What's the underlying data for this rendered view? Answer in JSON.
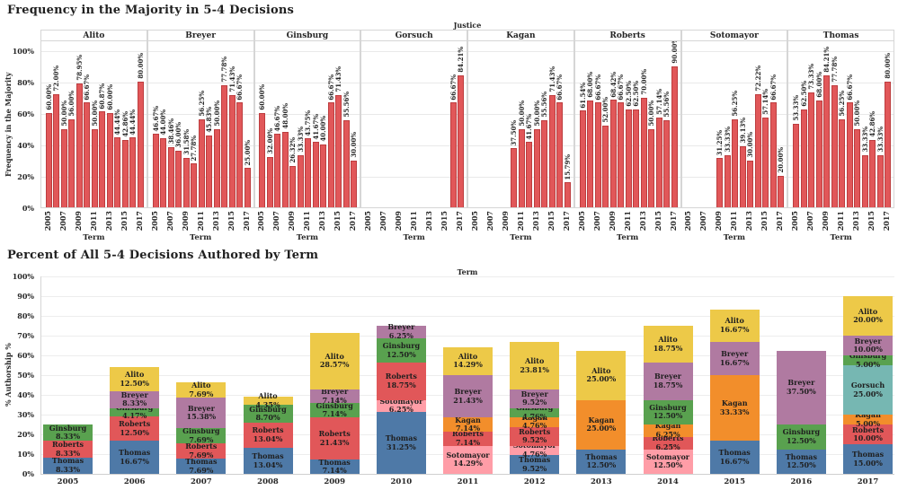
{
  "chart_data": [
    {
      "type": "bar",
      "title": "Frequency in the Majority in 5-4 Decisions",
      "facet_header": "Justice",
      "ylabel": "Frequency in the Majority",
      "xlabel": "Term",
      "ylim": [
        0,
        100
      ],
      "yticks_pct": [
        0,
        20,
        40,
        60,
        80,
        100
      ],
      "terms": [
        2005,
        2006,
        2007,
        2008,
        2009,
        2010,
        2011,
        2012,
        2013,
        2014,
        2015,
        2016,
        2017
      ],
      "xticks": [
        2005,
        2007,
        2009,
        2011,
        2013,
        2015,
        2017
      ],
      "bar_color": "#E15759",
      "grid": true,
      "panels": [
        {
          "justice": "Alito",
          "values": [
            60.0,
            72.0,
            50.0,
            56.0,
            78.95,
            66.67,
            50.0,
            60.87,
            60.0,
            44.44,
            42.86,
            44.44,
            80.0
          ]
        },
        {
          "justice": "Breyer",
          "values": [
            46.67,
            44.0,
            38.46,
            36.0,
            31.58,
            27.78,
            56.25,
            45.83,
            50.0,
            77.78,
            71.43,
            66.67,
            25.0
          ]
        },
        {
          "justice": "Ginsburg",
          "values": [
            60.0,
            32.0,
            46.67,
            48.0,
            26.32,
            33.33,
            43.75,
            41.67,
            40.0,
            66.67,
            71.43,
            55.56,
            30.0
          ]
        },
        {
          "justice": "Gorsuch",
          "values": [
            null,
            null,
            null,
            null,
            null,
            null,
            null,
            null,
            null,
            null,
            null,
            66.67,
            84.21
          ]
        },
        {
          "justice": "Kagan",
          "values": [
            null,
            null,
            null,
            null,
            null,
            37.5,
            50.0,
            41.67,
            50.0,
            55.56,
            71.43,
            66.67,
            15.79
          ]
        },
        {
          "justice": "Roberts",
          "values": [
            61.54,
            68.0,
            66.67,
            52.0,
            68.42,
            66.67,
            62.5,
            62.5,
            70.0,
            50.0,
            57.14,
            55.56,
            90.0
          ]
        },
        {
          "justice": "Sotomayor",
          "values": [
            null,
            null,
            null,
            null,
            31.25,
            33.33,
            56.25,
            39.13,
            30.0,
            72.22,
            57.14,
            66.67,
            20.0
          ]
        },
        {
          "justice": "Thomas",
          "values": [
            53.33,
            62.5,
            73.33,
            68.0,
            84.21,
            77.78,
            56.25,
            66.67,
            50.0,
            33.33,
            42.86,
            33.33,
            80.0
          ]
        }
      ]
    },
    {
      "type": "stacked-bar",
      "title": "Percent of All 5-4 Decisions Authored by Term",
      "top_header": "Term",
      "ylabel": "% Authorship %",
      "ylim": [
        0,
        100
      ],
      "yticks_pct": [
        0,
        10,
        20,
        30,
        40,
        50,
        60,
        70,
        80,
        90,
        100
      ],
      "grid": true,
      "justice_colors": {
        "Alito": "#EDC948",
        "Breyer": "#B07AA1",
        "Ginsburg": "#59A14F",
        "Gorsuch": "#76B7B2",
        "Kagan": "#F28E2B",
        "Roberts": "#E15759",
        "Sotomayor": "#FF9DA7",
        "Thomas": "#4E79A7"
      },
      "stacks": [
        {
          "term": "2005",
          "segments": [
            {
              "justice": "Thomas",
              "pct": 8.33
            },
            {
              "justice": "Roberts",
              "pct": 8.33
            },
            {
              "justice": "Ginsburg",
              "pct": 8.33
            }
          ]
        },
        {
          "term": "2006",
          "segments": [
            {
              "justice": "Thomas",
              "pct": 16.67
            },
            {
              "justice": "Roberts",
              "pct": 12.5
            },
            {
              "justice": "Ginsburg",
              "pct": 4.17
            },
            {
              "justice": "Breyer",
              "pct": 8.33
            },
            {
              "justice": "Alito",
              "pct": 12.5
            }
          ]
        },
        {
          "term": "2007",
          "segments": [
            {
              "justice": "Thomas",
              "pct": 7.69
            },
            {
              "justice": "Roberts",
              "pct": 7.69
            },
            {
              "justice": "Ginsburg",
              "pct": 7.69
            },
            {
              "justice": "Breyer",
              "pct": 15.38
            },
            {
              "justice": "Alito",
              "pct": 7.69
            }
          ]
        },
        {
          "term": "2008",
          "segments": [
            {
              "justice": "Thomas",
              "pct": 13.04
            },
            {
              "justice": "Roberts",
              "pct": 13.04
            },
            {
              "justice": "Ginsburg",
              "pct": 8.7
            },
            {
              "justice": "Alito",
              "pct": 4.35
            }
          ]
        },
        {
          "term": "2009",
          "segments": [
            {
              "justice": "Thomas",
              "pct": 7.14
            },
            {
              "justice": "Roberts",
              "pct": 21.43
            },
            {
              "justice": "Ginsburg",
              "pct": 7.14
            },
            {
              "justice": "Breyer",
              "pct": 7.14
            },
            {
              "justice": "Alito",
              "pct": 28.57
            }
          ]
        },
        {
          "term": "2010",
          "segments": [
            {
              "justice": "Thomas",
              "pct": 31.25
            },
            {
              "justice": "Sotomayor",
              "pct": 6.25
            },
            {
              "justice": "Roberts",
              "pct": 18.75
            },
            {
              "justice": "Ginsburg",
              "pct": 12.5
            },
            {
              "justice": "Breyer",
              "pct": 6.25
            }
          ]
        },
        {
          "term": "2011",
          "segments": [
            {
              "justice": "Sotomayor",
              "pct": 14.29
            },
            {
              "justice": "Roberts",
              "pct": 7.14
            },
            {
              "justice": "Kagan",
              "pct": 7.14
            },
            {
              "justice": "Breyer",
              "pct": 21.43
            },
            {
              "justice": "Alito",
              "pct": 14.29
            }
          ]
        },
        {
          "term": "2012",
          "segments": [
            {
              "justice": "Thomas",
              "pct": 9.52
            },
            {
              "justice": "Sotomayor",
              "pct": 4.76
            },
            {
              "justice": "Roberts",
              "pct": 9.52
            },
            {
              "justice": "Kagan",
              "pct": 4.76
            },
            {
              "justice": "Ginsburg",
              "pct": 4.76
            },
            {
              "justice": "Breyer",
              "pct": 9.52
            },
            {
              "justice": "Alito",
              "pct": 23.81
            }
          ]
        },
        {
          "term": "2013",
          "segments": [
            {
              "justice": "Thomas",
              "pct": 12.5
            },
            {
              "justice": "Kagan",
              "pct": 25.0
            },
            {
              "justice": "Alito",
              "pct": 25.0
            }
          ]
        },
        {
          "term": "2014",
          "segments": [
            {
              "justice": "Sotomayor",
              "pct": 12.5
            },
            {
              "justice": "Roberts",
              "pct": 6.25
            },
            {
              "justice": "Kagan",
              "pct": 6.25
            },
            {
              "justice": "Ginsburg",
              "pct": 12.5
            },
            {
              "justice": "Breyer",
              "pct": 18.75
            },
            {
              "justice": "Alito",
              "pct": 18.75
            }
          ]
        },
        {
          "term": "2015",
          "segments": [
            {
              "justice": "Thomas",
              "pct": 16.67
            },
            {
              "justice": "Kagan",
              "pct": 33.33
            },
            {
              "justice": "Breyer",
              "pct": 16.67
            },
            {
              "justice": "Alito",
              "pct": 16.67
            }
          ]
        },
        {
          "term": "2016",
          "segments": [
            {
              "justice": "Thomas",
              "pct": 12.5
            },
            {
              "justice": "Ginsburg",
              "pct": 12.5
            },
            {
              "justice": "Breyer",
              "pct": 37.5
            }
          ]
        },
        {
          "term": "2017",
          "segments": [
            {
              "justice": "Thomas",
              "pct": 15.0
            },
            {
              "justice": "Roberts",
              "pct": 10.0
            },
            {
              "justice": "Kagan",
              "pct": 5.0
            },
            {
              "justice": "Gorsuch",
              "pct": 25.0
            },
            {
              "justice": "Ginsburg",
              "pct": 5.0
            },
            {
              "justice": "Breyer",
              "pct": 10.0
            },
            {
              "justice": "Alito",
              "pct": 20.0
            }
          ]
        }
      ]
    }
  ]
}
